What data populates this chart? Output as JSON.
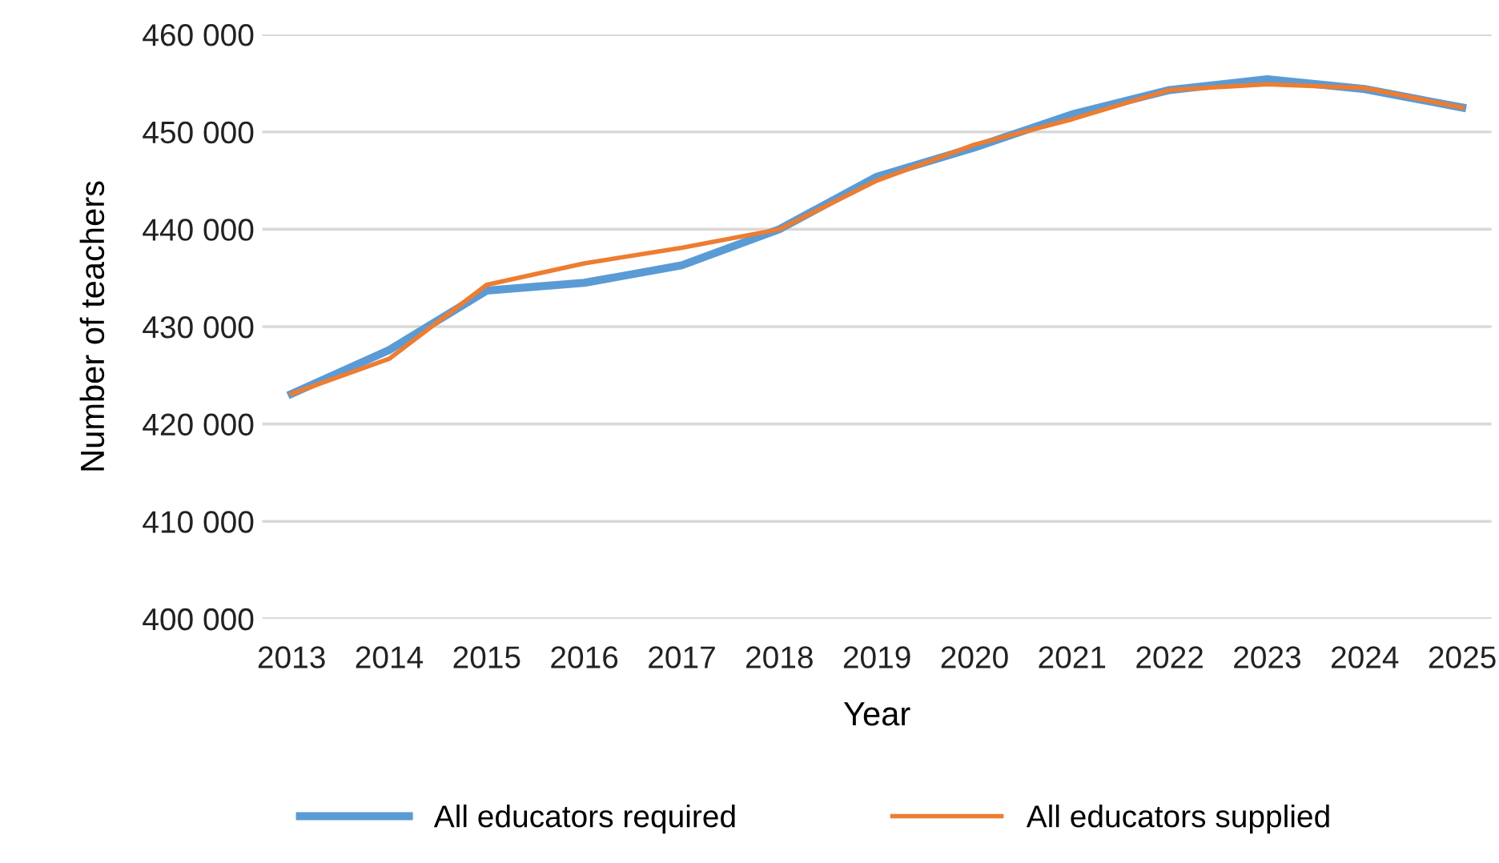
{
  "chart_data": {
    "type": "line",
    "xlabel": "Year",
    "ylabel": "Number of teachers",
    "categories": [
      "2013",
      "2014",
      "2015",
      "2016",
      "2017",
      "2018",
      "2019",
      "2020",
      "2021",
      "2022",
      "2023",
      "2024",
      "2025"
    ],
    "series": [
      {
        "name": "All educators required",
        "color": "#5b9bd5",
        "values": [
          423100,
          427600,
          433700,
          434500,
          436300,
          440000,
          445400,
          448400,
          451800,
          454300,
          455400,
          454400,
          452500
        ]
      },
      {
        "name": "All educators supplied",
        "color": "#ed7d31",
        "values": [
          423100,
          426700,
          434300,
          436500,
          438100,
          440000,
          445000,
          448700,
          451300,
          454300,
          454900,
          454500,
          452500
        ]
      }
    ],
    "ylim": [
      400000,
      460000
    ],
    "yticks": [
      {
        "value": 400000,
        "label": "400 000"
      },
      {
        "value": 410000,
        "label": "410 000"
      },
      {
        "value": 420000,
        "label": "420 000"
      },
      {
        "value": 430000,
        "label": "430 000"
      },
      {
        "value": 440000,
        "label": "440 000"
      },
      {
        "value": 450000,
        "label": "450 000"
      },
      {
        "value": 460000,
        "label": "460 000"
      }
    ],
    "grid": "y",
    "legend": "bottom",
    "marker": "none",
    "line_style": "solid"
  }
}
